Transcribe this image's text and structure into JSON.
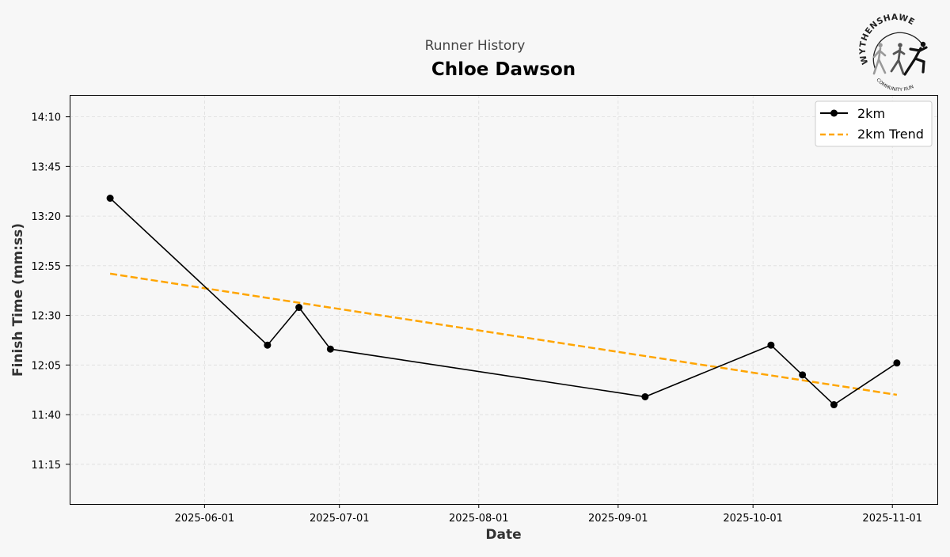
{
  "header": {
    "subtitle": "Runner History",
    "title": "Chloe Dawson"
  },
  "logo": {
    "top_text": "WYTHENSHAWE",
    "bottom_text": "COMMUNITY RUN"
  },
  "colors": {
    "background": "#f7f7f7",
    "series": "#000000",
    "trend": "#ffa500",
    "grid": "#dddddd"
  },
  "chart_data": {
    "type": "line",
    "xlabel": "Date",
    "ylabel": "Finish Time (mm:ss)",
    "x_tick_labels": [
      "2025-06-01",
      "2025-07-01",
      "2025-08-01",
      "2025-09-01",
      "2025-10-01",
      "2025-11-01"
    ],
    "y_tick_labels": [
      "11:15",
      "11:40",
      "12:05",
      "12:30",
      "12:55",
      "13:20",
      "13:45",
      "14:10"
    ],
    "xlim": [
      "2025-05-02",
      "2025-11-11"
    ],
    "ylim": [
      "10:55",
      "14:21"
    ],
    "grid": true,
    "legend_position": "top-right",
    "series": [
      {
        "name": "2km",
        "style": "solid-line-with-markers",
        "points": [
          {
            "x": "2025-05-11",
            "y": "13:29"
          },
          {
            "x": "2025-06-15",
            "y": "12:15"
          },
          {
            "x": "2025-06-22",
            "y": "12:34"
          },
          {
            "x": "2025-06-29",
            "y": "12:13"
          },
          {
            "x": "2025-09-07",
            "y": "11:49"
          },
          {
            "x": "2025-10-05",
            "y": "12:15"
          },
          {
            "x": "2025-10-12",
            "y": "12:00"
          },
          {
            "x": "2025-10-19",
            "y": "11:45"
          },
          {
            "x": "2025-11-02",
            "y": "12:06"
          }
        ]
      },
      {
        "name": "2km Trend",
        "style": "dashed-line",
        "points": [
          {
            "x": "2025-05-11",
            "y": "12:51"
          },
          {
            "x": "2025-11-02",
            "y": "11:50"
          }
        ]
      }
    ]
  }
}
